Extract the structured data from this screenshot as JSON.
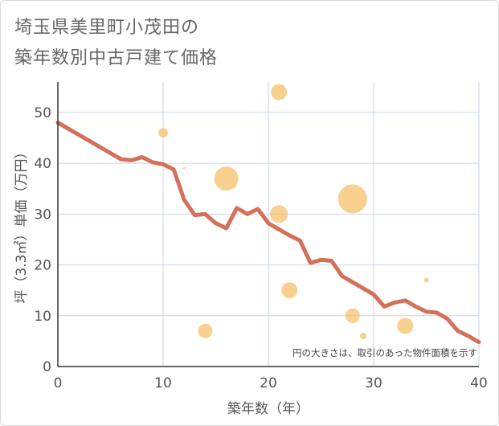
{
  "title_line1": "埼玉県美里町小茂田の",
  "title_line2": "築年数別中古戸建て価格",
  "chart_data": {
    "type": "scatter",
    "xlabel": "築年数（年）",
    "ylabel": "坪（3.3㎡）単価（万円）",
    "xlim": [
      0,
      40
    ],
    "ylim": [
      0,
      56
    ],
    "xticks": [
      0,
      10,
      20,
      30,
      40
    ],
    "yticks": [
      0,
      10,
      20,
      30,
      40,
      50
    ],
    "grid": true,
    "note": "円の大きさは、取引のあった物件面積を示す",
    "colors": {
      "line": "#d4705a",
      "bubble": "#f5c06a",
      "grid": "#c9d6e3",
      "axis": "#333333"
    },
    "line_series": {
      "x": [
        0,
        1,
        2,
        3,
        4,
        5,
        6,
        7,
        8,
        9,
        10,
        11,
        12,
        13,
        14,
        15,
        16,
        17,
        18,
        19,
        20,
        21,
        22,
        23,
        24,
        25,
        26,
        27,
        28,
        29,
        30,
        31,
        32,
        33,
        34,
        35,
        36,
        37,
        38,
        39,
        40
      ],
      "y": [
        48,
        46.8,
        45.6,
        44.4,
        43.2,
        42,
        40.8,
        40.6,
        41.2,
        40.2,
        39.8,
        38.8,
        32.8,
        29.8,
        30,
        28.2,
        27.2,
        31.2,
        30,
        31,
        28.2,
        27,
        25.8,
        24.8,
        20.4,
        21,
        20.8,
        17.8,
        16.6,
        15.4,
        14.2,
        11.8,
        12.6,
        13,
        11.8,
        10.8,
        10.6,
        9.4,
        7,
        6,
        4.8
      ]
    },
    "bubbles": [
      {
        "x": 10,
        "y": 46,
        "size": 6
      },
      {
        "x": 12,
        "y": 39,
        "size": 1.5
      },
      {
        "x": 14,
        "y": 7,
        "size": 9
      },
      {
        "x": 16,
        "y": 37,
        "size": 15
      },
      {
        "x": 21,
        "y": 54,
        "size": 10
      },
      {
        "x": 21,
        "y": 30,
        "size": 11
      },
      {
        "x": 22,
        "y": 15,
        "size": 10
      },
      {
        "x": 28,
        "y": 33,
        "size": 18
      },
      {
        "x": 28,
        "y": 10,
        "size": 9
      },
      {
        "x": 29,
        "y": 6,
        "size": 4
      },
      {
        "x": 33,
        "y": 8,
        "size": 10
      },
      {
        "x": 35,
        "y": 17,
        "size": 3
      }
    ]
  }
}
